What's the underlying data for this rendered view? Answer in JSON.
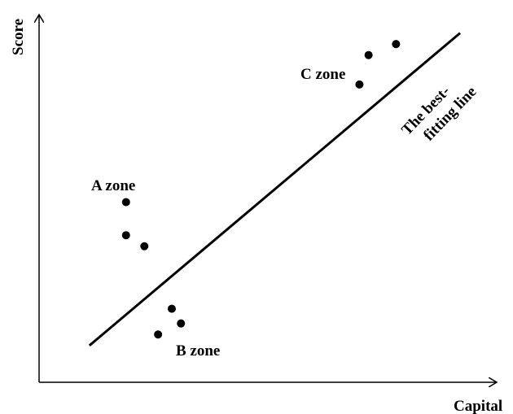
{
  "chart_data": {
    "type": "scatter",
    "title": "",
    "xlabel": "Capital",
    "ylabel": "Score",
    "xlim": [
      0,
      100
    ],
    "ylim": [
      0,
      100
    ],
    "grid": false,
    "axis_color": "#000000",
    "point_color": "#000000",
    "line_color": "#000000",
    "series": [
      {
        "zone": "A",
        "points": [
          {
            "x": 19,
            "y": 49
          },
          {
            "x": 19,
            "y": 40
          },
          {
            "x": 23,
            "y": 37
          }
        ]
      },
      {
        "zone": "B",
        "points": [
          {
            "x": 29,
            "y": 20
          },
          {
            "x": 26,
            "y": 13
          },
          {
            "x": 31,
            "y": 16
          }
        ]
      },
      {
        "zone": "C",
        "points": [
          {
            "x": 70,
            "y": 81
          },
          {
            "x": 72,
            "y": 89
          },
          {
            "x": 78,
            "y": 92
          }
        ]
      }
    ],
    "fit_line": {
      "x1": 11,
      "y1": 10,
      "x2": 92,
      "y2": 95
    },
    "annotations": {
      "zone_a": "A zone",
      "zone_b": "B zone",
      "zone_c": "C zone",
      "fit_line_line1": "The best-",
      "fit_line_line2": "fitting line"
    }
  }
}
